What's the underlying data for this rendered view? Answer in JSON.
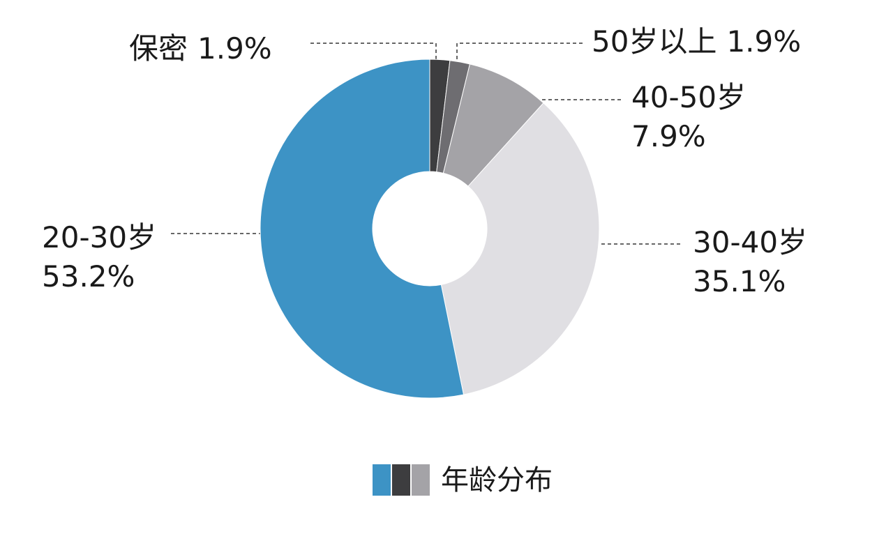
{
  "chart_data": {
    "type": "pie",
    "donut": true,
    "categories": [
      "保密",
      "50岁以上",
      "40-50岁",
      "30-40岁",
      "20-30岁"
    ],
    "values": [
      1.9,
      1.9,
      7.9,
      35.1,
      53.2
    ],
    "value_labels": [
      "1.9%",
      "1.9%",
      "7.9%",
      "35.1%",
      "53.2%"
    ],
    "colors": [
      "#3d3d3f",
      "#6e6d71",
      "#a4a3a7",
      "#e0dfe3",
      "#3d93c5"
    ],
    "legend_label": "年龄分布"
  }
}
